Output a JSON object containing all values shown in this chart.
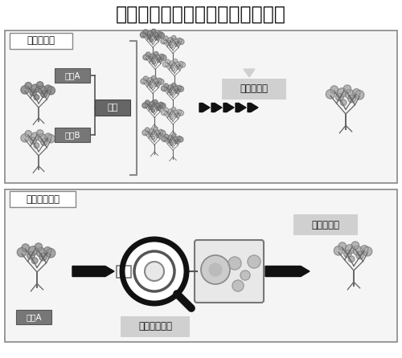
{
  "title": "従来の交配と遺伝子組換えの違い",
  "title_fontsize": 17,
  "bg_color": "#ffffff",
  "border_color": "#777777",
  "box1_label": "従来の交配",
  "box2_label": "遺伝子組換え",
  "label_sakumotsu_a": "作物A",
  "label_sakumotsu_b": "作物B",
  "label_kouhai": "交配",
  "label_sentaku": "個体を選抜",
  "label_sakusei": "個体を作出",
  "label_gene": "遺伝子を導入",
  "label_sakumotsu_a2": "作物A",
  "dark_gray": "#333333",
  "medium_gray": "#888888",
  "light_gray": "#bbbbbb",
  "lighter_gray": "#dddddd",
  "box_fill": "#777777",
  "panel_bg": "#f5f5f5"
}
